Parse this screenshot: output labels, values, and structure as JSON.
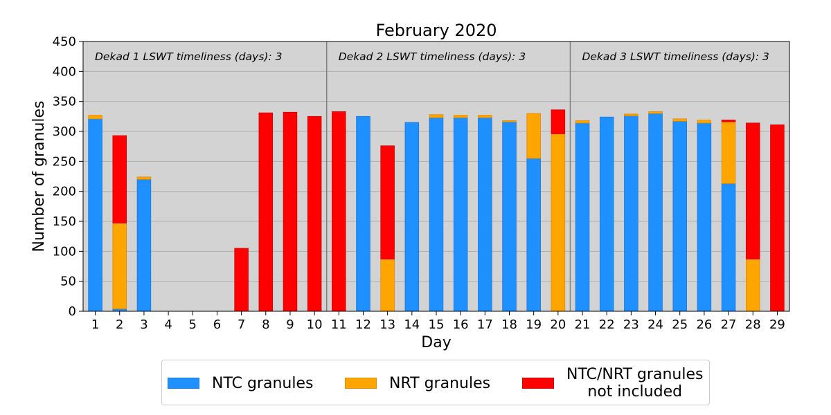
{
  "chart_data": {
    "type": "bar",
    "stacked": true,
    "title": "February 2020",
    "xlabel": "Day",
    "ylabel": "Number of granules",
    "ylim": [
      0,
      450
    ],
    "yticks": [
      0,
      50,
      100,
      150,
      200,
      250,
      300,
      350,
      400,
      450
    ],
    "grid": "y",
    "legend_position": "bottom",
    "categories": [
      "1",
      "2",
      "3",
      "4",
      "5",
      "6",
      "7",
      "8",
      "9",
      "10",
      "11",
      "12",
      "13",
      "14",
      "15",
      "16",
      "17",
      "18",
      "19",
      "20",
      "21",
      "22",
      "23",
      "24",
      "25",
      "26",
      "27",
      "28",
      "29"
    ],
    "series": [
      {
        "name": "NTC granules",
        "color": "#1e90ff",
        "values": [
          321,
          4,
          220,
          0,
          0,
          0,
          0,
          0,
          0,
          0,
          0,
          325,
          0,
          315,
          323,
          323,
          323,
          316,
          255,
          0,
          314,
          324,
          326,
          330,
          317,
          314,
          213,
          0,
          0
        ]
      },
      {
        "name": "NRT granules",
        "color": "#ffa500",
        "values": [
          6,
          143,
          4,
          0,
          0,
          0,
          0,
          0,
          0,
          0,
          0,
          0,
          87,
          0,
          5,
          4,
          4,
          2,
          75,
          296,
          4,
          0,
          3,
          3,
          4,
          5,
          103,
          87,
          0
        ]
      },
      {
        "name": "NTC/NRT granules\nnot included",
        "color": "#ff0000",
        "values": [
          0,
          146,
          0,
          0,
          0,
          0,
          105,
          331,
          332,
          325,
          333,
          0,
          189,
          0,
          0,
          0,
          0,
          0,
          0,
          40,
          0,
          0,
          0,
          0,
          0,
          0,
          3,
          227,
          311
        ]
      }
    ],
    "dekad_separators_after_day": [
      10,
      20
    ],
    "annotations": [
      "Dekad 1 LSWT timeliness (days): 3",
      "Dekad 2 LSWT timeliness (days): 3",
      "Dekad 3 LSWT timeliness (days): 3"
    ],
    "colors": {
      "plot_background": "#d3d3d3",
      "grid": "#b0b0b0",
      "separator": "#808080"
    }
  }
}
